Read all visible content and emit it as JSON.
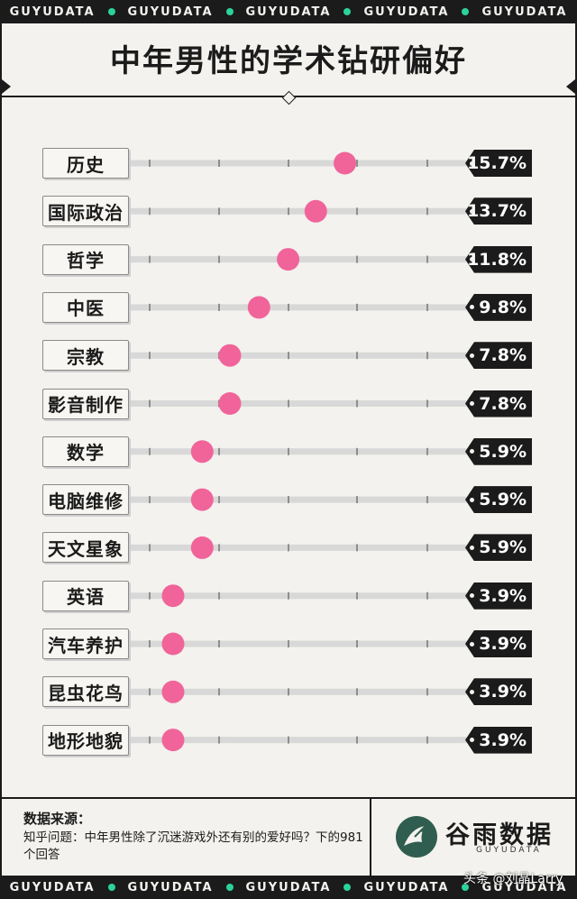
{
  "banner": {
    "word": "GUYUDATA",
    "repeat": 5
  },
  "title": "中年男性的学术钻研偏好",
  "chart_data": {
    "type": "bar",
    "categories": [
      "历史",
      "国际政治",
      "哲学",
      "中医",
      "宗教",
      "影音制作",
      "数学",
      "电脑维修",
      "天文星象",
      "英语",
      "汽车养护",
      "昆虫花鸟",
      "地形地貌"
    ],
    "values": [
      15.7,
      13.7,
      11.8,
      9.8,
      7.8,
      7.8,
      5.9,
      5.9,
      5.9,
      3.9,
      3.9,
      3.9,
      3.9
    ],
    "value_labels": [
      "15.7%",
      "13.7%",
      "11.8%",
      "9.8%",
      "7.8%",
      "7.8%",
      "5.9%",
      "5.9%",
      "5.9%",
      "3.9%",
      "3.9%",
      "3.9%",
      "3.9%"
    ],
    "marker_color": "#f0649a",
    "track_color": "#d8d8d8"
  },
  "footer": {
    "source_title": "数据来源：",
    "source_text": "知乎问题：中年男性除了沉迷游戏外还有别的爱好吗？下的981个回答",
    "brand": "谷雨数据",
    "brand_sub": "GUYUDATA",
    "watermark": "头条 @刘晶Larry"
  }
}
